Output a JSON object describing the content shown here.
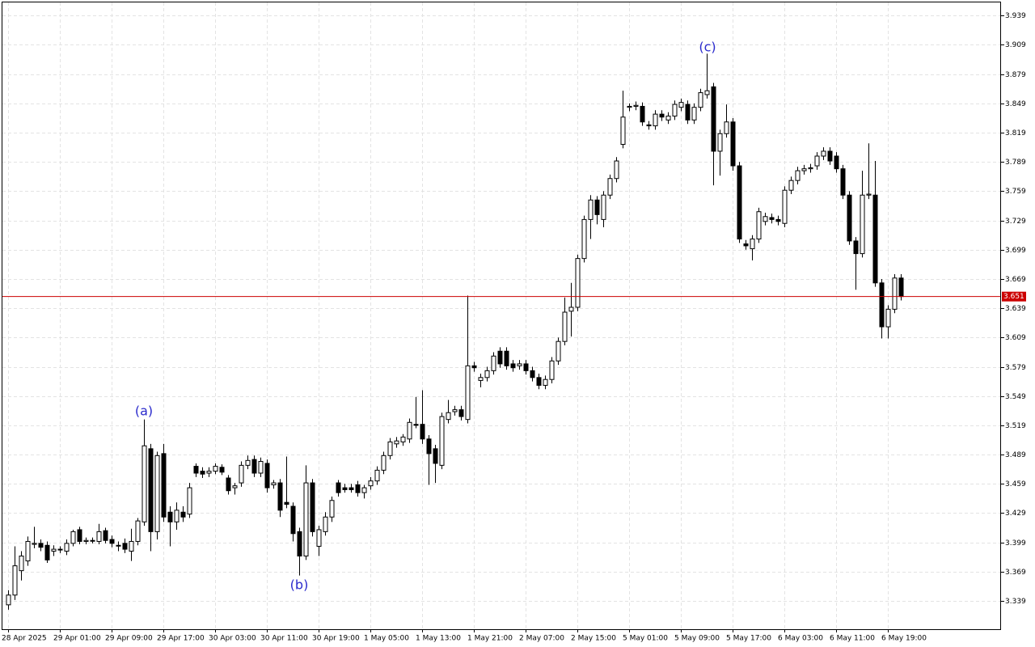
{
  "chart_data": {
    "type": "candlestick",
    "categories": [
      "28 Apr 2025",
      null,
      null,
      null,
      null,
      null,
      null,
      null,
      "29 Apr 01:00",
      null,
      null,
      null,
      null,
      null,
      null,
      null,
      "29 Apr 09:00",
      null,
      null,
      null,
      null,
      null,
      null,
      null,
      "29 Apr 17:00",
      null,
      null,
      null,
      null,
      null,
      null,
      null,
      "30 Apr 03:00",
      null,
      null,
      null,
      null,
      null,
      null,
      null,
      "30 Apr 11:00",
      null,
      null,
      null,
      null,
      null,
      null,
      null,
      "30 Apr 19:00",
      null,
      null,
      null,
      null,
      null,
      null,
      null,
      "1 May 05:00",
      null,
      null,
      null,
      null,
      null,
      null,
      null,
      "1 May 13:00",
      null,
      null,
      null,
      null,
      null,
      null,
      null,
      "1 May 21:00",
      null,
      null,
      null,
      null,
      null,
      null,
      null,
      "2 May 07:00",
      null,
      null,
      null,
      null,
      null,
      null,
      null,
      "2 May 15:00",
      null,
      null,
      null,
      null,
      null,
      null,
      null,
      "5 May 01:00",
      null,
      null,
      null,
      null,
      null,
      null,
      null,
      "5 May 09:00",
      null,
      null,
      null,
      null,
      null,
      null,
      null,
      "5 May 17:00",
      null,
      null,
      null,
      null,
      null,
      null,
      null,
      "6 May 03:00",
      null,
      null,
      null,
      null,
      null,
      null,
      null,
      "6 May 11:00",
      null,
      null,
      null,
      null,
      null,
      null,
      null,
      "6 May 19:00",
      null,
      null
    ],
    "ohlc": [
      [
        3.335,
        3.35,
        3.33,
        3.345
      ],
      [
        3.345,
        3.395,
        3.34,
        3.375
      ],
      [
        3.37,
        3.39,
        3.36,
        3.385
      ],
      [
        3.38,
        3.405,
        3.375,
        3.4
      ],
      [
        3.397,
        3.415,
        3.393,
        3.398
      ],
      [
        3.398,
        3.402,
        3.39,
        3.394
      ],
      [
        3.396,
        3.4,
        3.378,
        3.381
      ],
      [
        3.39,
        3.396,
        3.385,
        3.392
      ],
      [
        3.392,
        3.395,
        3.388,
        3.392
      ],
      [
        3.39,
        3.402,
        3.386,
        3.398
      ],
      [
        3.398,
        3.412,
        3.395,
        3.41
      ],
      [
        3.412,
        3.415,
        3.397,
        3.4
      ],
      [
        3.4,
        3.404,
        3.397,
        3.401
      ],
      [
        3.401,
        3.404,
        3.398,
        3.401
      ],
      [
        3.4,
        3.418,
        3.397,
        3.41
      ],
      [
        3.411,
        3.414,
        3.398,
        3.401
      ],
      [
        3.402,
        3.406,
        3.394,
        3.398
      ],
      [
        3.396,
        3.4,
        3.39,
        3.396
      ],
      [
        3.398,
        3.403,
        3.388,
        3.392
      ],
      [
        3.39,
        3.413,
        3.38,
        3.4
      ],
      [
        3.4,
        3.424,
        3.396,
        3.421
      ],
      [
        3.42,
        3.525,
        3.416,
        3.498
      ],
      [
        3.495,
        3.5,
        3.39,
        3.41
      ],
      [
        3.41,
        3.492,
        3.402,
        3.488
      ],
      [
        3.49,
        3.5,
        3.42,
        3.425
      ],
      [
        3.43,
        3.436,
        3.395,
        3.42
      ],
      [
        3.42,
        3.44,
        3.412,
        3.432
      ],
      [
        3.43,
        3.436,
        3.42,
        3.425
      ],
      [
        3.428,
        3.46,
        3.424,
        3.455
      ],
      [
        3.477,
        3.48,
        3.466,
        3.47
      ],
      [
        3.472,
        3.476,
        3.465,
        3.469
      ],
      [
        3.47,
        3.476,
        3.466,
        3.472
      ],
      [
        3.472,
        3.48,
        3.469,
        3.477
      ],
      [
        3.476,
        3.479,
        3.468,
        3.471
      ],
      [
        3.465,
        3.468,
        3.448,
        3.452
      ],
      [
        3.455,
        3.46,
        3.448,
        3.457
      ],
      [
        3.46,
        3.482,
        3.456,
        3.478
      ],
      [
        3.478,
        3.488,
        3.474,
        3.483
      ],
      [
        3.484,
        3.488,
        3.466,
        3.47
      ],
      [
        3.47,
        3.486,
        3.466,
        3.482
      ],
      [
        3.48,
        3.484,
        3.45,
        3.455
      ],
      [
        3.458,
        3.463,
        3.454,
        3.46
      ],
      [
        3.46,
        3.464,
        3.425,
        3.432
      ],
      [
        3.44,
        3.487,
        3.434,
        3.438
      ],
      [
        3.436,
        3.44,
        3.4,
        3.408
      ],
      [
        3.41,
        3.414,
        3.365,
        3.385
      ],
      [
        3.385,
        3.478,
        3.381,
        3.46
      ],
      [
        3.46,
        3.464,
        3.405,
        3.41
      ],
      [
        3.395,
        3.416,
        3.385,
        3.412
      ],
      [
        3.41,
        3.43,
        3.406,
        3.425
      ],
      [
        3.425,
        3.446,
        3.42,
        3.442
      ],
      [
        3.46,
        3.463,
        3.446,
        3.45
      ],
      [
        3.455,
        3.459,
        3.45,
        3.453
      ],
      [
        3.455,
        3.459,
        3.45,
        3.453
      ],
      [
        3.458,
        3.462,
        3.446,
        3.45
      ],
      [
        3.45,
        3.458,
        3.444,
        3.455
      ],
      [
        3.457,
        3.466,
        3.453,
        3.462
      ],
      [
        3.462,
        3.477,
        3.458,
        3.473
      ],
      [
        3.473,
        3.492,
        3.469,
        3.488
      ],
      [
        3.488,
        3.506,
        3.484,
        3.502
      ],
      [
        3.5,
        3.507,
        3.496,
        3.503
      ],
      [
        3.502,
        3.51,
        3.498,
        3.507
      ],
      [
        3.505,
        3.526,
        3.501,
        3.522
      ],
      [
        3.52,
        3.548,
        3.516,
        3.519
      ],
      [
        3.52,
        3.555,
        3.5,
        3.505
      ],
      [
        3.505,
        3.509,
        3.458,
        3.49
      ],
      [
        3.495,
        3.499,
        3.46,
        3.48
      ],
      [
        3.478,
        3.532,
        3.474,
        3.528
      ],
      [
        3.525,
        3.545,
        3.521,
        3.532
      ],
      [
        3.533,
        3.539,
        3.529,
        3.535
      ],
      [
        3.535,
        3.539,
        3.524,
        3.528
      ],
      [
        3.525,
        3.652,
        3.521,
        3.58
      ],
      [
        3.58,
        3.584,
        3.574,
        3.578
      ],
      [
        3.565,
        3.572,
        3.558,
        3.568
      ],
      [
        3.568,
        3.579,
        3.564,
        3.575
      ],
      [
        3.575,
        3.594,
        3.571,
        3.59
      ],
      [
        3.595,
        3.599,
        3.578,
        3.582
      ],
      [
        3.595,
        3.599,
        3.576,
        3.58
      ],
      [
        3.582,
        3.586,
        3.574,
        3.578
      ],
      [
        3.58,
        3.586,
        3.576,
        3.582
      ],
      [
        3.582,
        3.586,
        3.571,
        3.575
      ],
      [
        3.575,
        3.579,
        3.564,
        3.568
      ],
      [
        3.568,
        3.572,
        3.556,
        3.56
      ],
      [
        3.56,
        3.57,
        3.556,
        3.566
      ],
      [
        3.566,
        3.589,
        3.562,
        3.585
      ],
      [
        3.585,
        3.609,
        3.581,
        3.605
      ],
      [
        3.605,
        3.65,
        3.601,
        3.635
      ],
      [
        3.636,
        3.665,
        3.61,
        3.64
      ],
      [
        3.64,
        3.694,
        3.636,
        3.69
      ],
      [
        3.69,
        3.734,
        3.686,
        3.73
      ],
      [
        3.73,
        3.755,
        3.71,
        3.75
      ],
      [
        3.75,
        3.754,
        3.725,
        3.735
      ],
      [
        3.73,
        3.759,
        3.722,
        3.755
      ],
      [
        3.755,
        3.776,
        3.751,
        3.772
      ],
      [
        3.772,
        3.794,
        3.768,
        3.79
      ],
      [
        3.807,
        3.862,
        3.803,
        3.835
      ],
      [
        3.845,
        3.849,
        3.841,
        3.846
      ],
      [
        3.846,
        3.851,
        3.842,
        3.847
      ],
      [
        3.846,
        3.85,
        3.826,
        3.83
      ],
      [
        3.827,
        3.831,
        3.822,
        3.826
      ],
      [
        3.826,
        3.842,
        3.822,
        3.838
      ],
      [
        3.838,
        3.842,
        3.831,
        3.835
      ],
      [
        3.832,
        3.84,
        3.828,
        3.836
      ],
      [
        3.836,
        3.852,
        3.832,
        3.848
      ],
      [
        3.845,
        3.854,
        3.841,
        3.85
      ],
      [
        3.848,
        3.852,
        3.828,
        3.832
      ],
      [
        3.832,
        3.849,
        3.828,
        3.845
      ],
      [
        3.845,
        3.864,
        3.841,
        3.86
      ],
      [
        3.858,
        3.9,
        3.854,
        3.862
      ],
      [
        3.866,
        3.87,
        3.765,
        3.8
      ],
      [
        3.8,
        3.822,
        3.775,
        3.818
      ],
      [
        3.818,
        3.848,
        3.814,
        3.83
      ],
      [
        3.83,
        3.834,
        3.78,
        3.785
      ],
      [
        3.785,
        3.789,
        3.706,
        3.71
      ],
      [
        3.705,
        3.709,
        3.699,
        3.703
      ],
      [
        3.7,
        3.714,
        3.688,
        3.71
      ],
      [
        3.71,
        3.742,
        3.706,
        3.738
      ],
      [
        3.728,
        3.737,
        3.724,
        3.733
      ],
      [
        3.732,
        3.736,
        3.726,
        3.73
      ],
      [
        3.73,
        3.734,
        3.724,
        3.728
      ],
      [
        3.726,
        3.764,
        3.722,
        3.76
      ],
      [
        3.76,
        3.774,
        3.756,
        3.77
      ],
      [
        3.77,
        3.784,
        3.766,
        3.78
      ],
      [
        3.78,
        3.786,
        3.776,
        3.782
      ],
      [
        3.782,
        3.787,
        3.778,
        3.783
      ],
      [
        3.785,
        3.799,
        3.781,
        3.795
      ],
      [
        3.795,
        3.804,
        3.791,
        3.8
      ],
      [
        3.8,
        3.804,
        3.786,
        3.79
      ],
      [
        3.795,
        3.799,
        3.778,
        3.782
      ],
      [
        3.782,
        3.786,
        3.751,
        3.755
      ],
      [
        3.755,
        3.759,
        3.704,
        3.708
      ],
      [
        3.708,
        3.712,
        3.658,
        3.695
      ],
      [
        3.695,
        3.78,
        3.691,
        3.755
      ],
      [
        3.755,
        3.808,
        3.751,
        3.756
      ],
      [
        3.755,
        3.79,
        3.661,
        3.665
      ],
      [
        3.665,
        3.669,
        3.608,
        3.62
      ],
      [
        3.62,
        3.642,
        3.608,
        3.638
      ],
      [
        3.638,
        3.674,
        3.634,
        3.67
      ],
      [
        3.67,
        3.674,
        3.647,
        3.651
      ]
    ],
    "ylim": [
      3.31,
      3.955
    ],
    "yticks": [
      3.339,
      3.369,
      3.399,
      3.429,
      3.459,
      3.489,
      3.519,
      3.549,
      3.579,
      3.609,
      3.639,
      3.669,
      3.699,
      3.729,
      3.759,
      3.789,
      3.819,
      3.849,
      3.879,
      3.909,
      3.939
    ],
    "grid": true,
    "current_price": 3.651,
    "current_price_color": "#cc0000",
    "up_color": "#ffffff",
    "down_color": "#000000",
    "annotations": [
      "(a)",
      "(b)",
      "(c)"
    ]
  }
}
